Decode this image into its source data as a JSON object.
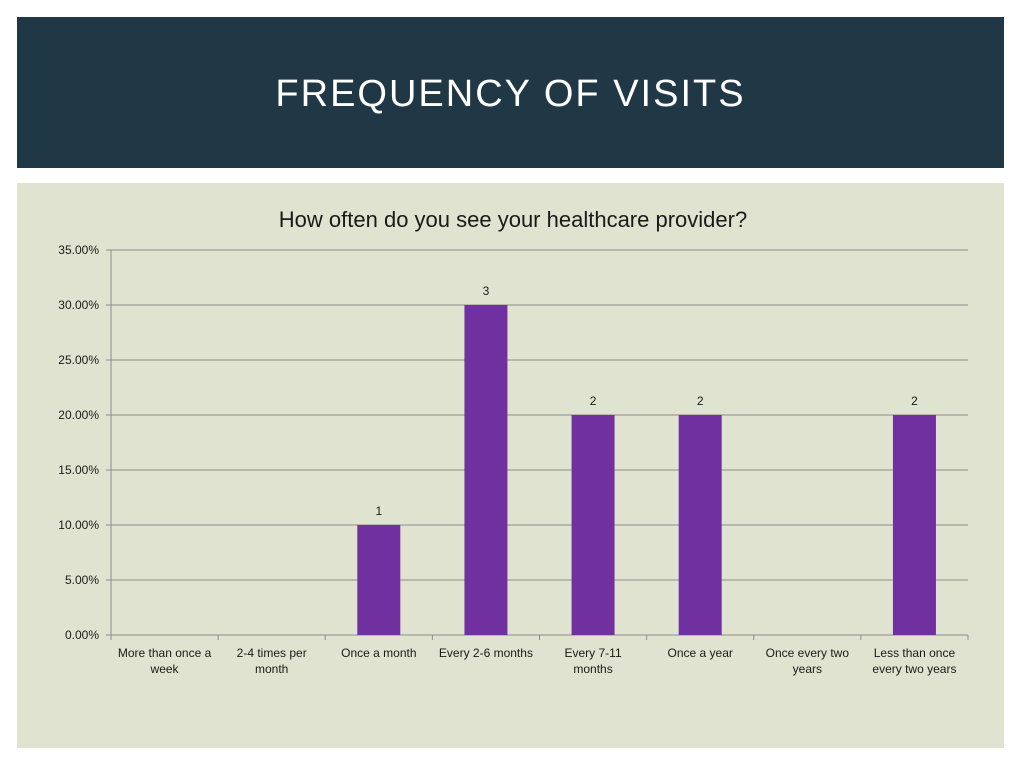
{
  "header": {
    "title": "FREQUENCY OF VISITS"
  },
  "colors": {
    "header_bg": "#203846",
    "panel_bg": "#e0e3cf",
    "bar": "#7030a0",
    "grid": "#8c8c8c"
  },
  "chart_data": {
    "type": "bar",
    "title": "How often do you see your healthcare provider?",
    "xlabel": "",
    "ylabel": "",
    "ylim": [
      0,
      35
    ],
    "y_ticks": [
      "0.00%",
      "5.00%",
      "10.00%",
      "15.00%",
      "20.00%",
      "25.00%",
      "30.00%",
      "35.00%"
    ],
    "grid": true,
    "legend": "none",
    "categories": [
      [
        "More than once a",
        "week"
      ],
      [
        "2-4 times per",
        "month"
      ],
      [
        "Once a month"
      ],
      [
        "Every 2-6 months"
      ],
      [
        "Every 7-11",
        "months"
      ],
      [
        "Once a year"
      ],
      [
        "Once every two",
        "years"
      ],
      [
        "Less than once",
        "every two years"
      ]
    ],
    "values": [
      0,
      0,
      10,
      30,
      20,
      20,
      0,
      20
    ],
    "data_labels": [
      "",
      "",
      "1",
      "3",
      "2",
      "2",
      "",
      "2"
    ]
  }
}
